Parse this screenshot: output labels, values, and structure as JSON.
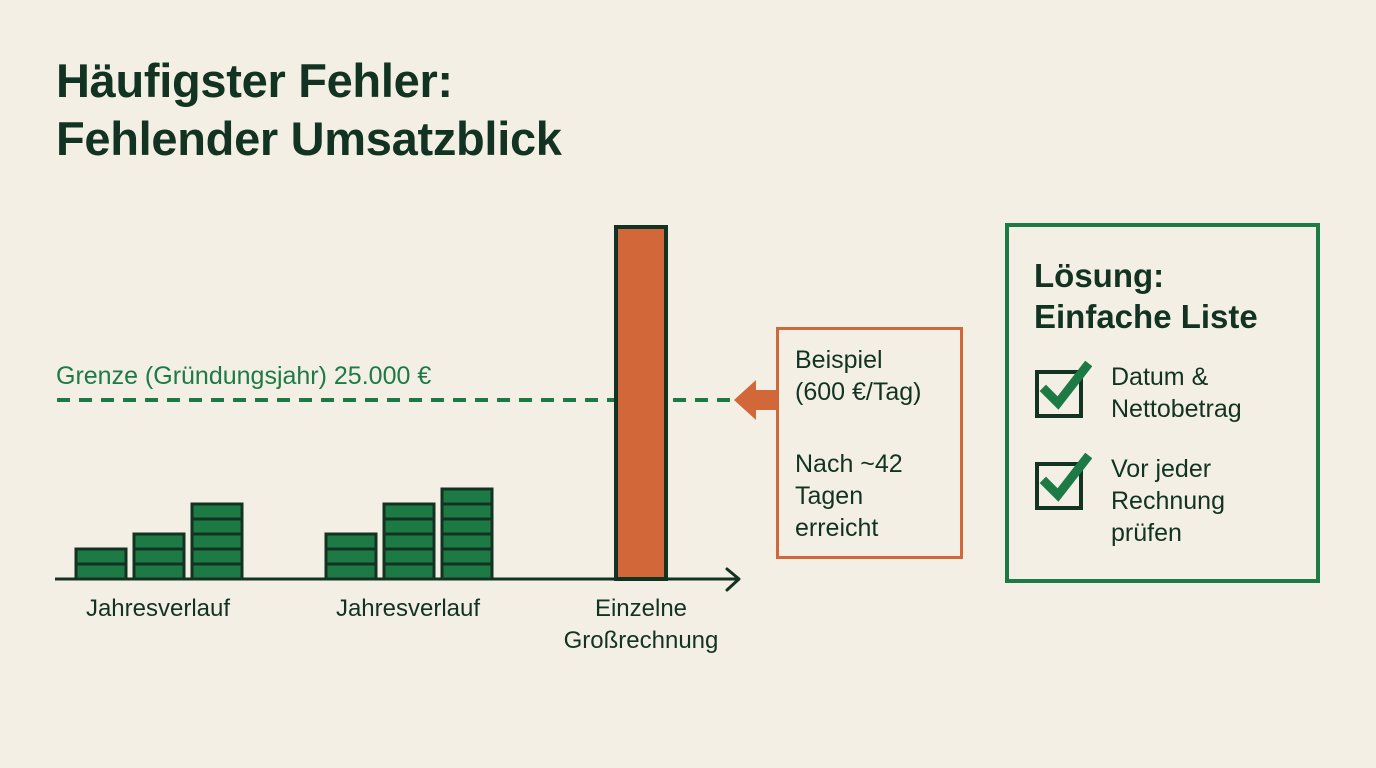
{
  "title": {
    "line1": "Häufigster Fehler:",
    "line2": "Fehlender Umsatzblick"
  },
  "colors": {
    "background": "#f3efe4",
    "dark_green": "#123322",
    "green": "#1d7a45",
    "orange": "#d2683a"
  },
  "chart_data": {
    "type": "bar",
    "categories": [
      "Jahresverlauf",
      "Jahresverlauf",
      "Einzelne\nGroßrechnung"
    ],
    "category_label_lines": [
      [
        "Jahresverlauf"
      ],
      [
        "Jahresverlauf"
      ],
      [
        "Einzelne",
        "Großrechnung"
      ]
    ],
    "threshold": {
      "label": "Grenze (Gründungsjahr) 25.000 €",
      "value": 25000,
      "style": "dashed"
    },
    "groups": [
      {
        "stacked_bar_levels": [
          2,
          3,
          5
        ]
      },
      {
        "stacked_bar_levels": [
          3,
          5,
          6
        ]
      },
      {
        "single_bar_relative_height": 1.0,
        "exceeds_threshold": true
      }
    ]
  },
  "example_box": {
    "line1": "Beispiel",
    "line2": "(600 €/Tag)",
    "line3": "Nach ~42",
    "line4": "Tagen",
    "line5": "erreicht",
    "arrow_icon": "arrow-left-icon"
  },
  "solution": {
    "title_line1": "Lösung:",
    "title_line2": "Einfache Liste",
    "items": [
      {
        "icon": "checkbox-checked-icon",
        "lines": [
          "Datum &",
          "Nettobetrag"
        ]
      },
      {
        "icon": "checkbox-checked-icon",
        "lines": [
          "Vor jeder",
          "Rechnung",
          "prüfen"
        ]
      }
    ]
  }
}
